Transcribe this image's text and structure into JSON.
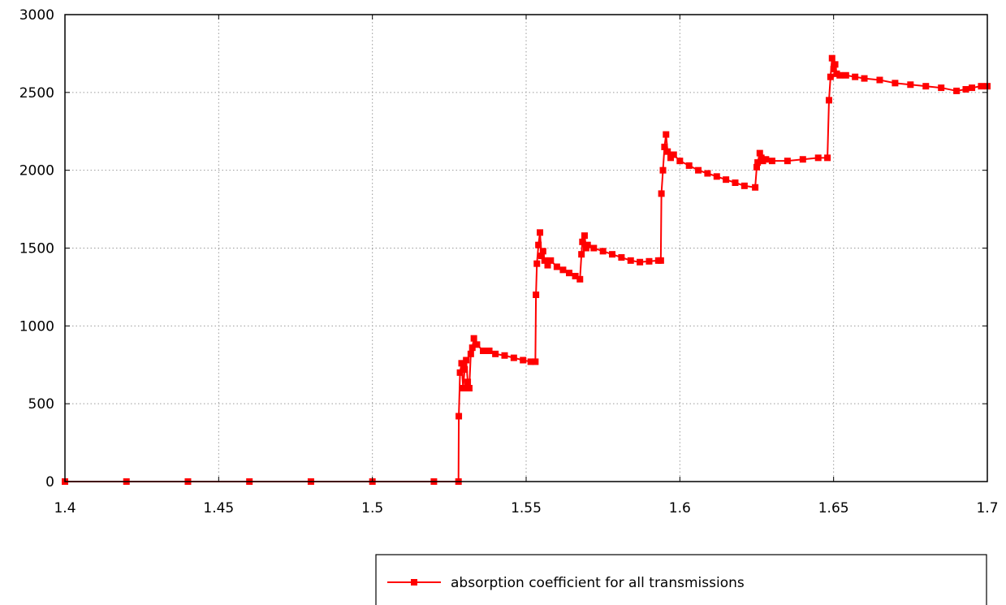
{
  "chart_data": {
    "type": "line",
    "title": "",
    "xlabel": "",
    "ylabel": "",
    "xlim": [
      1.4,
      1.7
    ],
    "ylim": [
      0,
      3000
    ],
    "x_ticks": [
      1.4,
      1.45,
      1.5,
      1.55,
      1.6,
      1.65,
      1.7
    ],
    "x_tick_labels": [
      "1.4",
      "1.45",
      "1.5",
      "1.55",
      "1.6",
      "1.65",
      "1.7"
    ],
    "y_ticks": [
      0,
      500,
      1000,
      1500,
      2000,
      2500,
      3000
    ],
    "y_tick_labels": [
      "0",
      "500",
      "1000",
      "1500",
      "2000",
      "2500",
      "3000"
    ],
    "grid": true,
    "legend_position": "bottom-right, below plot",
    "series": [
      {
        "name": "absorption coefficient for all transmissions",
        "color": "#ff0000",
        "marker": "square",
        "x": [
          1.4,
          1.42,
          1.44,
          1.46,
          1.48,
          1.5,
          1.52,
          1.528,
          1.5281,
          1.5285,
          1.529,
          1.5295,
          1.53,
          1.5305,
          1.531,
          1.5315,
          1.532,
          1.5325,
          1.533,
          1.534,
          1.536,
          1.538,
          1.54,
          1.543,
          1.546,
          1.549,
          1.5515,
          1.553,
          1.5532,
          1.5535,
          1.554,
          1.5545,
          1.555,
          1.5555,
          1.556,
          1.557,
          1.558,
          1.56,
          1.562,
          1.564,
          1.566,
          1.5675,
          1.568,
          1.5683,
          1.569,
          1.5695,
          1.57,
          1.572,
          1.575,
          1.578,
          1.581,
          1.584,
          1.587,
          1.59,
          1.593,
          1.5938,
          1.594,
          1.5945,
          1.595,
          1.5955,
          1.596,
          1.597,
          1.598,
          1.6,
          1.603,
          1.606,
          1.609,
          1.612,
          1.615,
          1.618,
          1.621,
          1.6245,
          1.625,
          1.6253,
          1.626,
          1.6265,
          1.627,
          1.628,
          1.63,
          1.635,
          1.64,
          1.645,
          1.648,
          1.6485,
          1.649,
          1.6495,
          1.65,
          1.6505,
          1.651,
          1.652,
          1.654,
          1.657,
          1.66,
          1.665,
          1.67,
          1.675,
          1.68,
          1.685,
          1.69,
          1.693,
          1.695,
          1.698,
          1.7
        ],
        "values": [
          0,
          0,
          0,
          0,
          0,
          0,
          0,
          0,
          420,
          700,
          760,
          600,
          720,
          780,
          640,
          600,
          820,
          860,
          920,
          880,
          840,
          840,
          820,
          810,
          795,
          780,
          770,
          770,
          1200,
          1400,
          1520,
          1600,
          1450,
          1480,
          1420,
          1390,
          1420,
          1380,
          1360,
          1340,
          1320,
          1300,
          1460,
          1540,
          1580,
          1500,
          1520,
          1500,
          1480,
          1460,
          1440,
          1420,
          1410,
          1415,
          1420,
          1420,
          1850,
          2000,
          2150,
          2230,
          2120,
          2080,
          2100,
          2060,
          2030,
          2000,
          1980,
          1960,
          1940,
          1920,
          1900,
          1890,
          2020,
          2050,
          2110,
          2080,
          2060,
          2070,
          2060,
          2060,
          2070,
          2080,
          2080,
          2450,
          2600,
          2720,
          2650,
          2680,
          2620,
          2610,
          2610,
          2600,
          2590,
          2580,
          2560,
          2550,
          2540,
          2530,
          2510,
          2520,
          2530,
          2540,
          2540
        ]
      }
    ]
  }
}
